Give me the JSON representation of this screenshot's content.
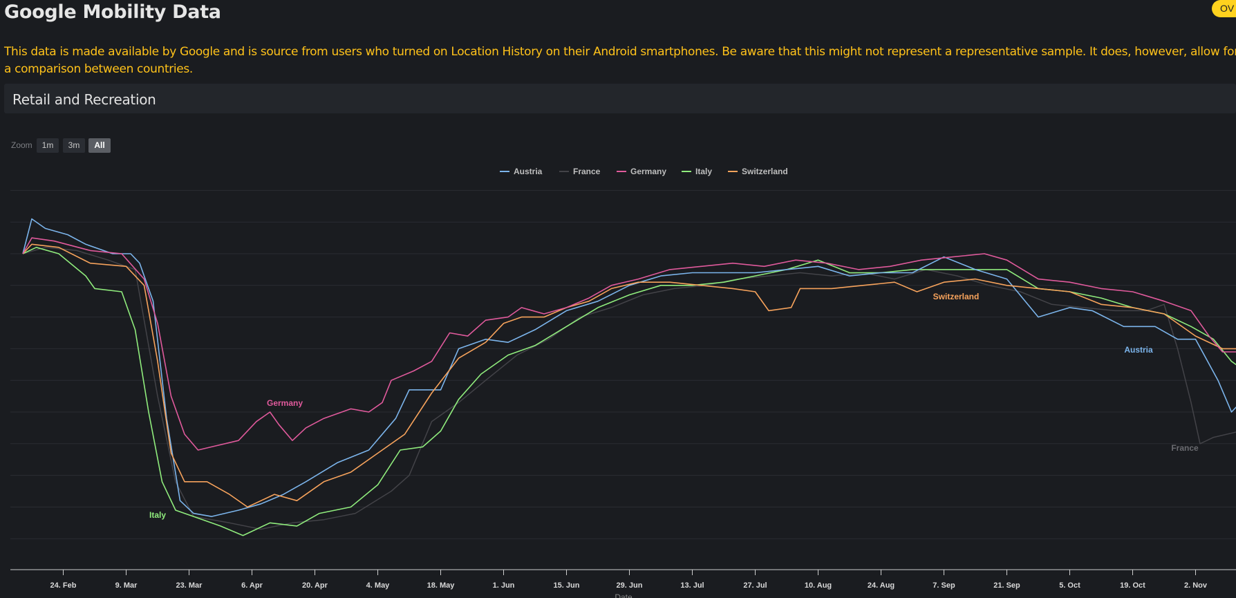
{
  "page": {
    "title": "Google Mobility Data",
    "badge": "OV",
    "intro": "This data is made available by Google and is source from users who turned on Location History on their Android smartphones. Be aware that this might not represent a representative sample. It does, however, allow for a comparison between countries.",
    "section_title": "Retail and Recreation"
  },
  "zoom": {
    "label": "Zoom",
    "buttons": [
      "1m",
      "3m",
      "All"
    ],
    "active": "All"
  },
  "colors": {
    "Austria": "#7cb5ec",
    "France": "#434348",
    "Germany": "#e05a9c",
    "Italy": "#90ed7d",
    "Switzerland": "#f7a35c"
  },
  "chart_data": {
    "type": "line",
    "title": "",
    "xlabel": "Date",
    "ylabel": "",
    "x_start": "2020-02-15",
    "x_end": "2020-11-12",
    "x_tick_labels": [
      "24. Feb",
      "9. Mar",
      "23. Mar",
      "6. Apr",
      "20. Apr",
      "4. May",
      "18. May",
      "1. Jun",
      "15. Jun",
      "29. Jun",
      "13. Jul",
      "27. Jul",
      "10. Aug",
      "24. Aug",
      "7. Sep",
      "21. Sep",
      "5. Oct",
      "19. Oct",
      "2. Nov"
    ],
    "ylim": [
      -100,
      20
    ],
    "grid": true,
    "legend_position": "top-center",
    "series": [
      {
        "name": "Austria",
        "data": [
          [
            "2020-02-15",
            0
          ],
          [
            "2020-02-17",
            11
          ],
          [
            "2020-02-20",
            8
          ],
          [
            "2020-02-25",
            6
          ],
          [
            "2020-02-29",
            3
          ],
          [
            "2020-03-06",
            0
          ],
          [
            "2020-03-10",
            0
          ],
          [
            "2020-03-12",
            -3
          ],
          [
            "2020-03-15",
            -15
          ],
          [
            "2020-03-18",
            -52
          ],
          [
            "2020-03-21",
            -78
          ],
          [
            "2020-03-24",
            -82
          ],
          [
            "2020-03-28",
            -83
          ],
          [
            "2020-04-03",
            -81
          ],
          [
            "2020-04-08",
            -79
          ],
          [
            "2020-04-13",
            -76
          ],
          [
            "2020-04-18",
            -72
          ],
          [
            "2020-04-25",
            -66
          ],
          [
            "2020-05-02",
            -62
          ],
          [
            "2020-05-08",
            -52
          ],
          [
            "2020-05-11",
            -43
          ],
          [
            "2020-05-18",
            -43
          ],
          [
            "2020-05-22",
            -30
          ],
          [
            "2020-05-28",
            -27
          ],
          [
            "2020-06-02",
            -28
          ],
          [
            "2020-06-08",
            -24
          ],
          [
            "2020-06-15",
            -18
          ],
          [
            "2020-06-22",
            -15
          ],
          [
            "2020-06-29",
            -10
          ],
          [
            "2020-07-06",
            -7
          ],
          [
            "2020-07-13",
            -6
          ],
          [
            "2020-07-20",
            -6
          ],
          [
            "2020-07-27",
            -6
          ],
          [
            "2020-08-03",
            -5
          ],
          [
            "2020-08-10",
            -4
          ],
          [
            "2020-08-17",
            -7
          ],
          [
            "2020-08-24",
            -6
          ],
          [
            "2020-08-31",
            -6
          ],
          [
            "2020-09-07",
            -1
          ],
          [
            "2020-09-14",
            -5
          ],
          [
            "2020-09-21",
            -8
          ],
          [
            "2020-09-28",
            -20
          ],
          [
            "2020-10-05",
            -17
          ],
          [
            "2020-10-10",
            -18
          ],
          [
            "2020-10-17",
            -23
          ],
          [
            "2020-10-24",
            -23
          ],
          [
            "2020-10-29",
            -27
          ],
          [
            "2020-11-02",
            -27
          ],
          [
            "2020-11-07",
            -40
          ],
          [
            "2020-11-10",
            -50
          ],
          [
            "2020-11-12",
            -47
          ]
        ]
      },
      {
        "name": "France",
        "data": [
          [
            "2020-02-15",
            0
          ],
          [
            "2020-02-20",
            2
          ],
          [
            "2020-02-27",
            1
          ],
          [
            "2020-03-05",
            -2
          ],
          [
            "2020-03-11",
            -5
          ],
          [
            "2020-03-16",
            -45
          ],
          [
            "2020-03-20",
            -72
          ],
          [
            "2020-03-24",
            -83
          ],
          [
            "2020-04-01",
            -85
          ],
          [
            "2020-04-08",
            -87
          ],
          [
            "2020-04-15",
            -85
          ],
          [
            "2020-04-22",
            -84
          ],
          [
            "2020-04-29",
            -82
          ],
          [
            "2020-05-07",
            -75
          ],
          [
            "2020-05-11",
            -70
          ],
          [
            "2020-05-16",
            -53
          ],
          [
            "2020-05-22",
            -47
          ],
          [
            "2020-05-28",
            -40
          ],
          [
            "2020-06-04",
            -32
          ],
          [
            "2020-06-11",
            -27
          ],
          [
            "2020-06-18",
            -20
          ],
          [
            "2020-06-25",
            -17
          ],
          [
            "2020-07-02",
            -13
          ],
          [
            "2020-07-09",
            -11
          ],
          [
            "2020-07-16",
            -10
          ],
          [
            "2020-07-23",
            -8
          ],
          [
            "2020-07-30",
            -7
          ],
          [
            "2020-08-06",
            -6
          ],
          [
            "2020-08-13",
            -7
          ],
          [
            "2020-08-20",
            -6
          ],
          [
            "2020-08-27",
            -8
          ],
          [
            "2020-09-03",
            -5
          ],
          [
            "2020-09-10",
            -7
          ],
          [
            "2020-09-17",
            -10
          ],
          [
            "2020-09-24",
            -12
          ],
          [
            "2020-10-01",
            -16
          ],
          [
            "2020-10-08",
            -17
          ],
          [
            "2020-10-15",
            -18
          ],
          [
            "2020-10-22",
            -18
          ],
          [
            "2020-10-26",
            -16
          ],
          [
            "2020-10-29",
            -30
          ],
          [
            "2020-11-01",
            -47
          ],
          [
            "2020-11-03",
            -60
          ],
          [
            "2020-11-06",
            -58
          ],
          [
            "2020-11-12",
            -56
          ]
        ]
      },
      {
        "name": "Germany",
        "data": [
          [
            "2020-02-15",
            0
          ],
          [
            "2020-02-17",
            5
          ],
          [
            "2020-02-22",
            4
          ],
          [
            "2020-03-01",
            1
          ],
          [
            "2020-03-08",
            0
          ],
          [
            "2020-03-13",
            -8
          ],
          [
            "2020-03-16",
            -22
          ],
          [
            "2020-03-19",
            -45
          ],
          [
            "2020-03-22",
            -57
          ],
          [
            "2020-03-25",
            -62
          ],
          [
            "2020-03-28",
            -61
          ],
          [
            "2020-04-03",
            -59
          ],
          [
            "2020-04-07",
            -53
          ],
          [
            "2020-04-10",
            -50
          ],
          [
            "2020-04-12",
            -54
          ],
          [
            "2020-04-15",
            -59
          ],
          [
            "2020-04-18",
            -55
          ],
          [
            "2020-04-22",
            -52
          ],
          [
            "2020-04-28",
            -49
          ],
          [
            "2020-05-02",
            -50
          ],
          [
            "2020-05-05",
            -47
          ],
          [
            "2020-05-07",
            -40
          ],
          [
            "2020-05-12",
            -37
          ],
          [
            "2020-05-16",
            -34
          ],
          [
            "2020-05-20",
            -25
          ],
          [
            "2020-05-24",
            -26
          ],
          [
            "2020-05-28",
            -21
          ],
          [
            "2020-06-02",
            -20
          ],
          [
            "2020-06-05",
            -17
          ],
          [
            "2020-06-10",
            -19
          ],
          [
            "2020-06-15",
            -17
          ],
          [
            "2020-06-20",
            -14
          ],
          [
            "2020-06-25",
            -10
          ],
          [
            "2020-07-01",
            -8
          ],
          [
            "2020-07-08",
            -5
          ],
          [
            "2020-07-15",
            -4
          ],
          [
            "2020-07-22",
            -3
          ],
          [
            "2020-07-29",
            -4
          ],
          [
            "2020-08-05",
            -2
          ],
          [
            "2020-08-12",
            -3
          ],
          [
            "2020-08-19",
            -5
          ],
          [
            "2020-08-26",
            -4
          ],
          [
            "2020-09-02",
            -2
          ],
          [
            "2020-09-09",
            -1
          ],
          [
            "2020-09-16",
            0
          ],
          [
            "2020-09-21",
            -2
          ],
          [
            "2020-09-28",
            -8
          ],
          [
            "2020-10-05",
            -9
          ],
          [
            "2020-10-12",
            -11
          ],
          [
            "2020-10-19",
            -12
          ],
          [
            "2020-10-26",
            -15
          ],
          [
            "2020-11-01",
            -18
          ],
          [
            "2020-11-05",
            -26
          ],
          [
            "2020-11-08",
            -31
          ],
          [
            "2020-11-12",
            -31
          ]
        ]
      },
      {
        "name": "Italy",
        "data": [
          [
            "2020-02-15",
            0
          ],
          [
            "2020-02-18",
            2
          ],
          [
            "2020-02-23",
            0
          ],
          [
            "2020-02-29",
            -7
          ],
          [
            "2020-03-02",
            -11
          ],
          [
            "2020-03-08",
            -12
          ],
          [
            "2020-03-11",
            -24
          ],
          [
            "2020-03-14",
            -50
          ],
          [
            "2020-03-17",
            -72
          ],
          [
            "2020-03-20",
            -81
          ],
          [
            "2020-03-24",
            -83
          ],
          [
            "2020-03-30",
            -86
          ],
          [
            "2020-04-04",
            -89
          ],
          [
            "2020-04-10",
            -85
          ],
          [
            "2020-04-16",
            -86
          ],
          [
            "2020-04-21",
            -82
          ],
          [
            "2020-04-28",
            -80
          ],
          [
            "2020-05-04",
            -73
          ],
          [
            "2020-05-09",
            -62
          ],
          [
            "2020-05-14",
            -61
          ],
          [
            "2020-05-18",
            -56
          ],
          [
            "2020-05-22",
            -46
          ],
          [
            "2020-05-27",
            -38
          ],
          [
            "2020-06-02",
            -32
          ],
          [
            "2020-06-08",
            -29
          ],
          [
            "2020-06-15",
            -23
          ],
          [
            "2020-06-22",
            -17
          ],
          [
            "2020-06-29",
            -13
          ],
          [
            "2020-07-06",
            -10
          ],
          [
            "2020-07-13",
            -10
          ],
          [
            "2020-07-20",
            -9
          ],
          [
            "2020-07-27",
            -7
          ],
          [
            "2020-08-03",
            -5
          ],
          [
            "2020-08-10",
            -2
          ],
          [
            "2020-08-17",
            -6
          ],
          [
            "2020-08-24",
            -6
          ],
          [
            "2020-08-31",
            -5
          ],
          [
            "2020-09-07",
            -5
          ],
          [
            "2020-09-14",
            -5
          ],
          [
            "2020-09-21",
            -5
          ],
          [
            "2020-09-28",
            -11
          ],
          [
            "2020-10-05",
            -12
          ],
          [
            "2020-10-12",
            -14
          ],
          [
            "2020-10-19",
            -17
          ],
          [
            "2020-10-26",
            -19
          ],
          [
            "2020-11-01",
            -23
          ],
          [
            "2020-11-06",
            -27
          ],
          [
            "2020-11-10",
            -34
          ],
          [
            "2020-11-12",
            -36
          ]
        ]
      },
      {
        "name": "Switzerland",
        "data": [
          [
            "2020-02-15",
            0
          ],
          [
            "2020-02-17",
            3
          ],
          [
            "2020-02-23",
            2
          ],
          [
            "2020-03-01",
            -3
          ],
          [
            "2020-03-09",
            -4
          ],
          [
            "2020-03-13",
            -10
          ],
          [
            "2020-03-16",
            -34
          ],
          [
            "2020-03-19",
            -63
          ],
          [
            "2020-03-22",
            -72
          ],
          [
            "2020-03-27",
            -72
          ],
          [
            "2020-04-01",
            -76
          ],
          [
            "2020-04-05",
            -80
          ],
          [
            "2020-04-11",
            -76
          ],
          [
            "2020-04-16",
            -78
          ],
          [
            "2020-04-22",
            -72
          ],
          [
            "2020-04-28",
            -69
          ],
          [
            "2020-05-04",
            -63
          ],
          [
            "2020-05-10",
            -57
          ],
          [
            "2020-05-16",
            -44
          ],
          [
            "2020-05-22",
            -33
          ],
          [
            "2020-05-28",
            -28
          ],
          [
            "2020-06-01",
            -22
          ],
          [
            "2020-06-05",
            -20
          ],
          [
            "2020-06-10",
            -20
          ],
          [
            "2020-06-15",
            -17
          ],
          [
            "2020-06-20",
            -15
          ],
          [
            "2020-06-25",
            -11
          ],
          [
            "2020-07-01",
            -9
          ],
          [
            "2020-07-08",
            -9
          ],
          [
            "2020-07-15",
            -10
          ],
          [
            "2020-07-22",
            -11
          ],
          [
            "2020-07-27",
            -12
          ],
          [
            "2020-07-30",
            -18
          ],
          [
            "2020-08-04",
            -17
          ],
          [
            "2020-08-06",
            -11
          ],
          [
            "2020-08-13",
            -11
          ],
          [
            "2020-08-20",
            -10
          ],
          [
            "2020-08-27",
            -9
          ],
          [
            "2020-09-01",
            -12
          ],
          [
            "2020-09-07",
            -9
          ],
          [
            "2020-09-14",
            -8
          ],
          [
            "2020-09-21",
            -10
          ],
          [
            "2020-09-28",
            -11
          ],
          [
            "2020-10-05",
            -12
          ],
          [
            "2020-10-12",
            -16
          ],
          [
            "2020-10-19",
            -17
          ],
          [
            "2020-10-26",
            -19
          ],
          [
            "2020-11-02",
            -26
          ],
          [
            "2020-11-08",
            -30
          ],
          [
            "2020-11-12",
            -30
          ]
        ]
      }
    ],
    "annotations": [
      {
        "text": "Germany",
        "series": "Germany"
      },
      {
        "text": "Italy",
        "series": "Italy"
      },
      {
        "text": "Switzerland",
        "series": "Switzerland"
      },
      {
        "text": "Austria",
        "series": "Austria"
      },
      {
        "text": "France",
        "series": "France"
      }
    ]
  }
}
